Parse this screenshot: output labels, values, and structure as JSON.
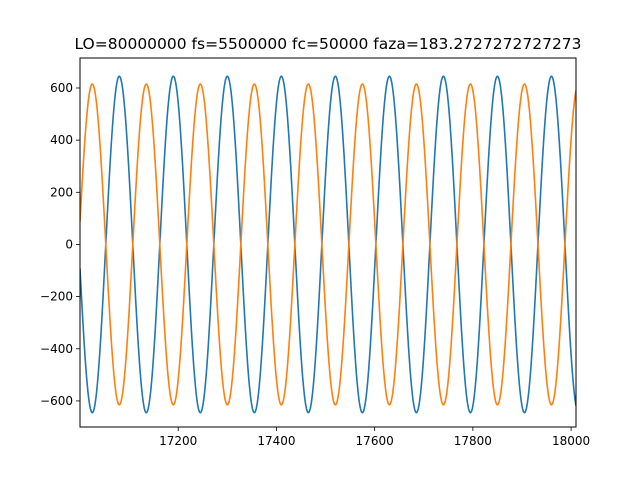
{
  "chart_data": {
    "type": "line",
    "title": "LO=80000000 fs=5500000 fc=50000 faza=183.2727272727273",
    "xlabel": "",
    "ylabel": "",
    "xlim": [
      17000,
      18010
    ],
    "ylim": [
      -700,
      715
    ],
    "xticks": [
      17200,
      17400,
      17600,
      17800,
      18000
    ],
    "yticks": [
      -600,
      -400,
      -200,
      0,
      200,
      400,
      600
    ],
    "grid": false,
    "legend": "none",
    "series": [
      {
        "color": "#1f77b4",
        "function": "sine",
        "amplitude": 645,
        "period_samples": 110,
        "peak_at_x": 17080
      },
      {
        "color": "#ff7f0e",
        "function": "sine",
        "amplitude": 615,
        "period_samples": 110,
        "peak_at_x": 17025
      }
    ]
  }
}
